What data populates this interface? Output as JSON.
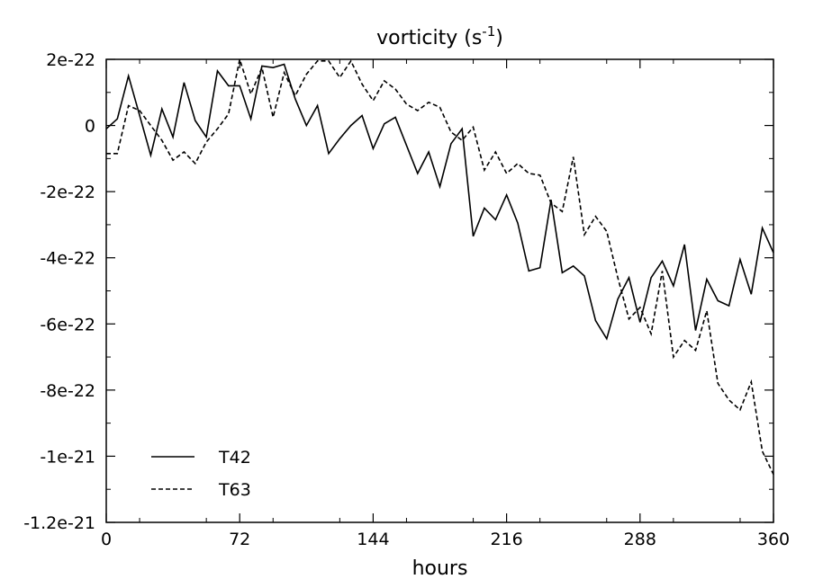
{
  "chart_data": {
    "type": "line",
    "title": "vorticity (s",
    "title_superscript": "-1",
    "title_close": ")",
    "xlabel": "hours",
    "ylabel": "",
    "xlim": [
      0,
      360
    ],
    "ylim": [
      -1.2e-21,
      2e-22
    ],
    "x_ticks": [
      0,
      72,
      144,
      216,
      288,
      360
    ],
    "x_tick_labels": [
      "0",
      "72",
      "144",
      "216",
      "288",
      "360"
    ],
    "y_ticks": [
      2e-22,
      0,
      -2e-22,
      -4e-22,
      -6e-22,
      -8e-22,
      -1e-21,
      -1.2e-21
    ],
    "y_tick_labels": [
      "2e-22",
      "0",
      "-2e-22",
      "-4e-22",
      "-6e-22",
      "-8e-22",
      "-1e-21",
      "-1.2e-21"
    ],
    "grid": false,
    "legend_position": "bottom-left",
    "series": [
      {
        "name": "T42",
        "style": "solid",
        "color": "#000000",
        "x": [
          0,
          6,
          12,
          18,
          24,
          30,
          36,
          42,
          48,
          54,
          60,
          66,
          72,
          78,
          84,
          90,
          96,
          102,
          108,
          114,
          120,
          126,
          132,
          138,
          144,
          150,
          156,
          162,
          168,
          174,
          180,
          186,
          192,
          198,
          204,
          210,
          216,
          222,
          228,
          234,
          240,
          246,
          252,
          258,
          264,
          270,
          276,
          282,
          288,
          294,
          300,
          306,
          312,
          318,
          324,
          330,
          336,
          342,
          348,
          354,
          360
        ],
        "values": [
          -1e-23,
          2e-23,
          1.5e-22,
          3e-23,
          -9e-23,
          5e-23,
          -3.5e-23,
          1.3e-22,
          1.5e-23,
          -3.5e-23,
          1.65e-22,
          1.2e-22,
          1.2e-22,
          2e-23,
          1.8e-22,
          1.75e-22,
          1.85e-22,
          8e-23,
          0.0,
          6e-23,
          -8.5e-23,
          -4e-23,
          0.0,
          3e-23,
          -7e-23,
          5e-24,
          2.5e-23,
          -6e-23,
          -1.45e-22,
          -8e-23,
          -1.85e-22,
          -5.5e-23,
          -1e-23,
          -3.35e-22,
          -2.5e-22,
          -2.85e-22,
          -2.1e-22,
          -2.95e-22,
          -4.4e-22,
          -4.3e-22,
          -2.25e-22,
          -4.45e-22,
          -4.25e-22,
          -4.55e-22,
          -5.9e-22,
          -6.45e-22,
          -5.25e-22,
          -4.6e-22,
          -5.95e-22,
          -4.6e-22,
          -4.1e-22,
          -4.85e-22,
          -3.6e-22,
          -6.2e-22,
          -4.65e-22,
          -5.3e-22,
          -5.45e-22,
          -4.05e-22,
          -5.1e-22,
          -3.1e-22,
          -3.85e-22
        ]
      },
      {
        "name": "T63",
        "style": "dashed",
        "color": "#000000",
        "x": [
          0,
          6,
          12,
          18,
          24,
          30,
          36,
          42,
          48,
          54,
          60,
          66,
          72,
          78,
          84,
          90,
          96,
          102,
          108,
          114,
          120,
          126,
          132,
          138,
          144,
          150,
          156,
          162,
          168,
          174,
          180,
          186,
          192,
          198,
          204,
          210,
          216,
          222,
          228,
          234,
          240,
          246,
          252,
          258,
          264,
          270,
          276,
          282,
          288,
          294,
          300,
          306,
          312,
          318,
          324,
          330,
          336,
          342,
          348,
          354,
          360
        ],
        "values": [
          -8.5e-23,
          -8.5e-23,
          6e-23,
          4.5e-23,
          0.0,
          -4.5e-23,
          -1.05e-22,
          -8e-23,
          -1.15e-22,
          -5e-23,
          -1e-23,
          3.5e-23,
          2e-22,
          9.5e-23,
          1.75e-22,
          2.5e-23,
          1.6e-22,
          9e-23,
          1.55e-22,
          1.95e-22,
          1.95e-22,
          1.45e-22,
          1.95e-22,
          1.25e-22,
          7.5e-23,
          1.35e-22,
          1.1e-22,
          6.5e-23,
          4.5e-23,
          7e-23,
          5.5e-23,
          -2e-23,
          -4.5e-23,
          -5e-24,
          -1.35e-22,
          -8e-23,
          -1.45e-22,
          -1.15e-22,
          -1.45e-22,
          -1.5e-22,
          -2.35e-22,
          -2.6e-22,
          -9.5e-23,
          -3.3e-22,
          -2.75e-22,
          -3.2e-22,
          -4.6e-22,
          -5.85e-22,
          -5.5e-22,
          -6.3e-22,
          -4.4e-22,
          -7e-22,
          -6.5e-22,
          -6.8e-22,
          -5.6e-22,
          -7.8e-22,
          -8.3e-22,
          -8.6e-22,
          -7.75e-22,
          -9.85e-22,
          -1.055e-21
        ]
      }
    ]
  }
}
